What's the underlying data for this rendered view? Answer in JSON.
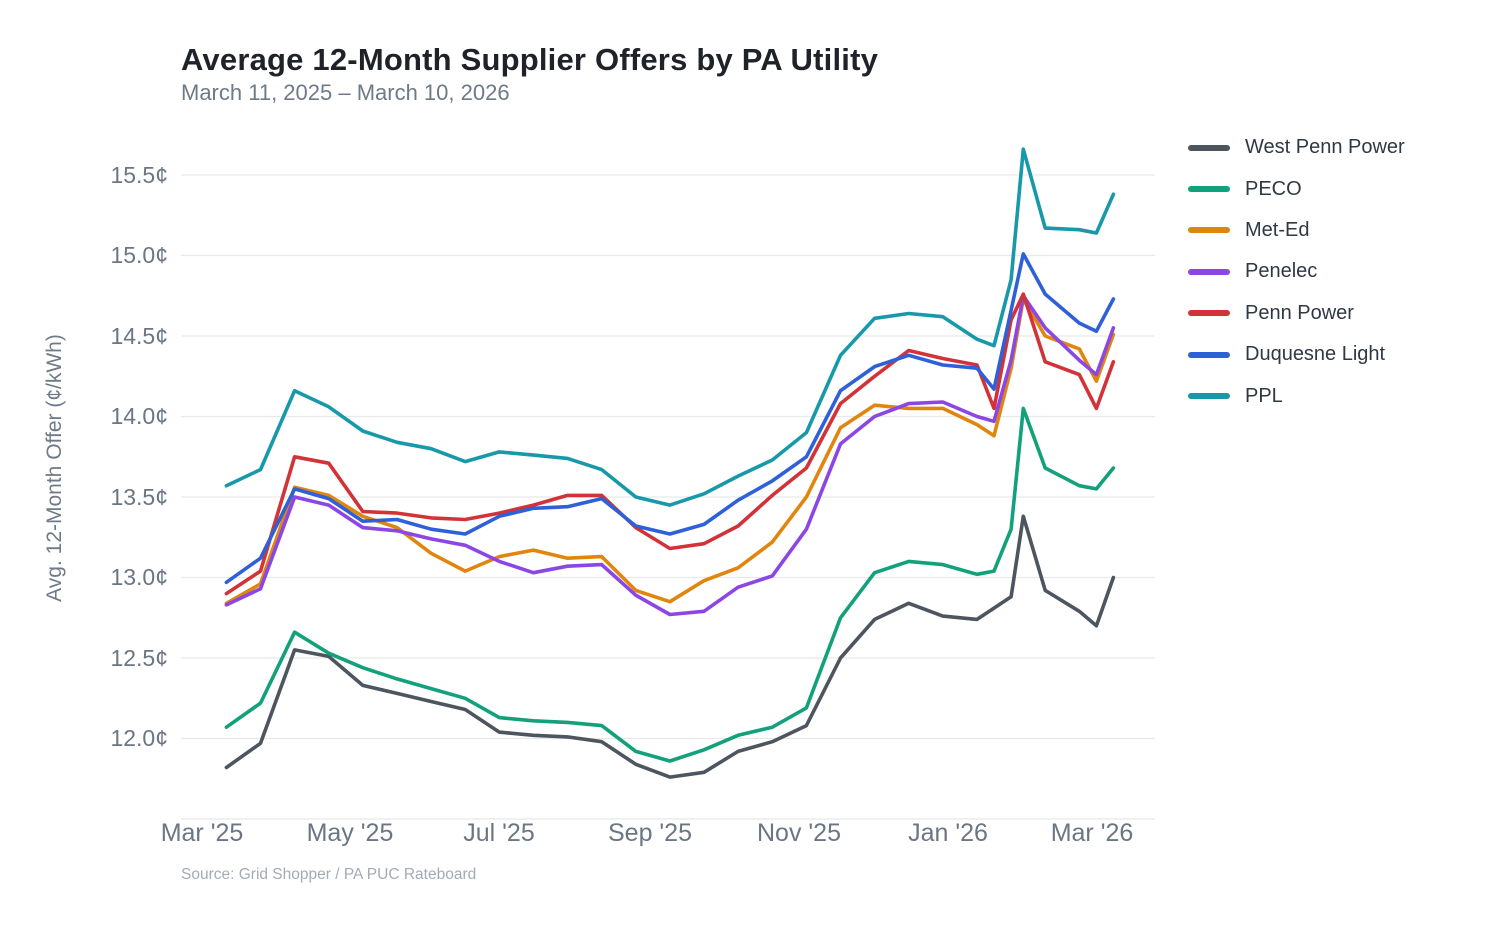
{
  "chart_data": {
    "type": "line",
    "title": "Average 12-Month Supplier Offers by PA Utility",
    "subtitle": "March 11, 2025 – March 10, 2026",
    "source": "Source: Grid Shopper / PA PUC Rateboard",
    "xlabel": "",
    "ylabel": "Avg. 12-Month Offer (¢/kWh)",
    "unit": "¢/kWh",
    "ylim": [
      11.5,
      15.8
    ],
    "x_range": [
      "2025-03-11",
      "2026-03-10"
    ],
    "grid": true,
    "legend_position": "right",
    "y_tick_labels": [
      "15.5¢",
      "15.0¢",
      "14.5¢",
      "14.0¢",
      "13.5¢",
      "13.0¢",
      "12.5¢",
      "12.0¢"
    ],
    "y_tick_values": [
      15.5,
      15.0,
      14.5,
      14.0,
      13.5,
      13.0,
      12.5,
      12.0
    ],
    "extra_gridline_value": 11.5,
    "x_tick_labels": [
      "Mar '25",
      "May '25",
      "Jul '25",
      "Sep '25",
      "Nov '25",
      "Jan '26",
      "Mar '26"
    ],
    "x_tick_dates": [
      "2025-03-01",
      "2025-05-01",
      "2025-07-01",
      "2025-09-01",
      "2025-11-01",
      "2026-01-01",
      "2026-03-01"
    ],
    "x_dates": [
      "2025-03-11",
      "2025-03-25",
      "2025-04-08",
      "2025-04-22",
      "2025-05-06",
      "2025-05-20",
      "2025-06-03",
      "2025-06-17",
      "2025-07-01",
      "2025-07-15",
      "2025-07-29",
      "2025-08-12",
      "2025-08-26",
      "2025-09-09",
      "2025-09-23",
      "2025-10-07",
      "2025-10-21",
      "2025-11-04",
      "2025-11-18",
      "2025-12-02",
      "2025-12-16",
      "2025-12-30",
      "2026-01-13",
      "2026-01-20",
      "2026-01-27",
      "2026-02-01",
      "2026-02-10",
      "2026-02-24",
      "2026-03-03",
      "2026-03-10"
    ],
    "series": [
      {
        "name": "West Penn Power",
        "color": "#4d555f",
        "values": [
          11.82,
          11.97,
          12.55,
          12.51,
          12.33,
          12.28,
          12.23,
          12.18,
          12.04,
          12.02,
          12.01,
          11.98,
          11.84,
          11.76,
          11.79,
          11.92,
          11.98,
          12.08,
          12.5,
          12.74,
          12.84,
          12.76,
          12.74,
          12.81,
          12.88,
          13.38,
          12.92,
          12.79,
          12.7,
          13.0
        ]
      },
      {
        "name": "PECO",
        "color": "#12a17b",
        "values": [
          12.07,
          12.22,
          12.66,
          12.53,
          12.44,
          12.37,
          12.31,
          12.25,
          12.13,
          12.11,
          12.1,
          12.08,
          11.92,
          11.86,
          11.93,
          12.02,
          12.07,
          12.19,
          12.75,
          13.03,
          13.1,
          13.08,
          13.02,
          13.04,
          13.3,
          14.05,
          13.68,
          13.57,
          13.55,
          13.68
        ]
      },
      {
        "name": "Met-Ed",
        "color": "#e0860f",
        "values": [
          12.84,
          12.96,
          13.56,
          13.51,
          13.38,
          13.31,
          13.15,
          13.04,
          13.13,
          13.17,
          13.12,
          13.13,
          12.92,
          12.85,
          12.98,
          13.06,
          13.22,
          13.5,
          13.93,
          14.07,
          14.05,
          14.05,
          13.95,
          13.88,
          14.3,
          14.73,
          14.5,
          14.42,
          14.22,
          14.51
        ]
      },
      {
        "name": "Penelec",
        "color": "#8b46e4",
        "values": [
          12.83,
          12.93,
          13.5,
          13.45,
          13.31,
          13.29,
          13.24,
          13.2,
          13.1,
          13.03,
          13.07,
          13.08,
          12.89,
          12.77,
          12.79,
          12.94,
          13.01,
          13.3,
          13.83,
          14.0,
          14.08,
          14.09,
          14.0,
          13.97,
          14.35,
          14.75,
          14.55,
          14.35,
          14.26,
          14.55
        ]
      },
      {
        "name": "Penn Power",
        "color": "#d13338",
        "values": [
          12.9,
          13.04,
          13.75,
          13.71,
          13.41,
          13.4,
          13.37,
          13.36,
          13.4,
          13.45,
          13.51,
          13.51,
          13.31,
          13.18,
          13.21,
          13.32,
          13.51,
          13.68,
          14.08,
          14.25,
          14.41,
          14.36,
          14.32,
          14.05,
          14.6,
          14.76,
          14.34,
          14.26,
          14.05,
          14.34
        ]
      },
      {
        "name": "Duquesne Light",
        "color": "#2e60d8",
        "values": [
          12.97,
          13.12,
          13.55,
          13.49,
          13.35,
          13.36,
          13.3,
          13.27,
          13.38,
          13.43,
          13.44,
          13.49,
          13.32,
          13.27,
          13.33,
          13.48,
          13.6,
          13.75,
          14.16,
          14.31,
          14.38,
          14.32,
          14.3,
          14.17,
          14.66,
          15.01,
          14.76,
          14.58,
          14.53,
          14.73
        ]
      },
      {
        "name": "PPL",
        "color": "#1899aa",
        "values": [
          13.57,
          13.67,
          14.16,
          14.06,
          13.91,
          13.84,
          13.8,
          13.72,
          13.78,
          13.76,
          13.74,
          13.67,
          13.5,
          13.45,
          13.52,
          13.63,
          13.73,
          13.9,
          14.38,
          14.61,
          14.64,
          14.62,
          14.48,
          14.44,
          14.85,
          15.66,
          15.17,
          15.16,
          15.14,
          15.38
        ]
      }
    ]
  }
}
